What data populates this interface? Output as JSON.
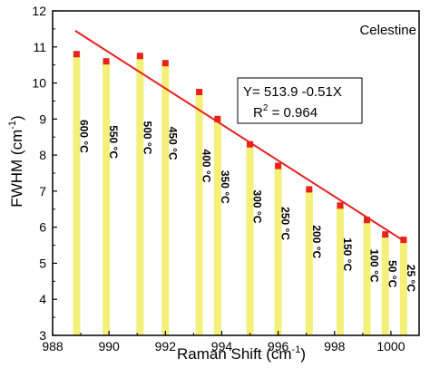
{
  "chart_data": {
    "type": "bar",
    "title": "",
    "xlabel_main": "Raman Shift (cm",
    "xlabel_sup": "-1",
    "xlabel_end": ")",
    "ylabel_main": "FWHM (cm",
    "ylabel_sup": "-1",
    "ylabel_end": ")",
    "xlim": [
      988,
      1001
    ],
    "ylim": [
      3,
      12
    ],
    "x_ticks": [
      988,
      990,
      992,
      994,
      996,
      998,
      1000
    ],
    "y_ticks": [
      3,
      4,
      5,
      6,
      7,
      8,
      9,
      10,
      11,
      12
    ],
    "series_label": "Celestine",
    "bar_color": "#f5f07a",
    "marker_color": "#e8211e",
    "fit_color": "#e8211e",
    "points": [
      {
        "x": 988.85,
        "y": 10.8,
        "label": "600 °C"
      },
      {
        "x": 989.9,
        "y": 10.6,
        "label": "550 °C"
      },
      {
        "x": 991.1,
        "y": 10.75,
        "label": "500 °C"
      },
      {
        "x": 992.0,
        "y": 10.55,
        "label": "450 °C"
      },
      {
        "x": 993.2,
        "y": 9.75,
        "label": "400 °C"
      },
      {
        "x": 993.85,
        "y": 9.0,
        "label": "350 °C"
      },
      {
        "x": 995.0,
        "y": 8.3,
        "label": "300 °C"
      },
      {
        "x": 996.0,
        "y": 7.7,
        "label": "250 °C"
      },
      {
        "x": 997.1,
        "y": 7.05,
        "label": "200 °C"
      },
      {
        "x": 998.2,
        "y": 6.6,
        "label": "150 °C"
      },
      {
        "x": 999.15,
        "y": 6.2,
        "label": "100 °C"
      },
      {
        "x": 999.8,
        "y": 5.8,
        "label": "50 °C"
      },
      {
        "x": 1000.45,
        "y": 5.65,
        "label": "25 °C"
      }
    ],
    "fit_line": {
      "x": [
        988.8,
        1000.5
      ],
      "y": [
        11.45,
        5.6
      ]
    },
    "fit_equation": "Y= 513.9 -0.51X",
    "r2_prefix": "R",
    "r2_sup": "2",
    "r2_value": " = 0.964"
  }
}
